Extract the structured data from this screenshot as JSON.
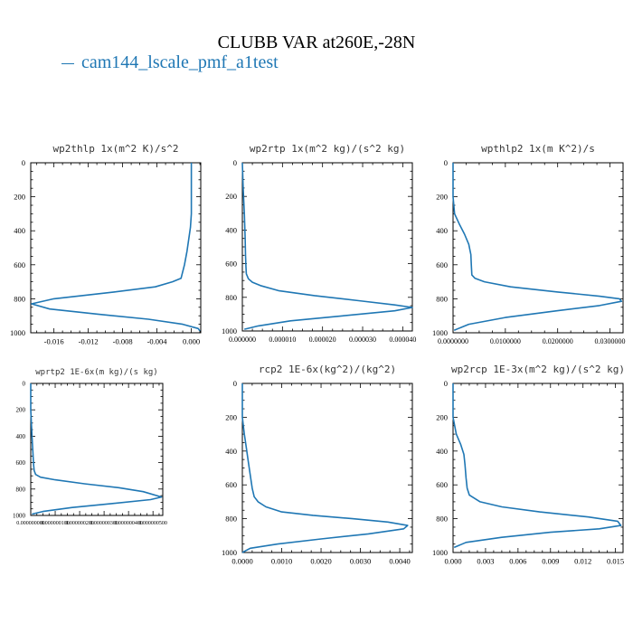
{
  "title": "CLUBB VAR at260E,-28N",
  "legend": {
    "label": "cam144_lscale_pmf_a1test",
    "color": "#1f77b4"
  },
  "chart_data": [
    {
      "type": "line",
      "title": "wp2thlp   1x(m^2 K)/s^2",
      "xlim": [
        -0.0187,
        0.0011
      ],
      "ylim": [
        1000,
        0
      ],
      "xticks": [
        -0.016,
        -0.012,
        -0.008,
        -0.004,
        0.0
      ],
      "xtick_labels": [
        "-0.016",
        "-0.012",
        "-0.008",
        "-0.004",
        "0.000"
      ],
      "yticks": [
        0,
        200,
        400,
        600,
        800,
        1000
      ],
      "series": [
        {
          "x": [
            0.0,
            0.0,
            0.0,
            0.0,
            0.0,
            -0.0001,
            -0.0003,
            -0.0005,
            -0.0008,
            -0.0012,
            -0.0022,
            -0.0042,
            -0.009,
            -0.016,
            -0.0186,
            -0.0165,
            -0.011,
            -0.005,
            -0.001,
            0.0008,
            0.001
          ],
          "y": [
            0,
            100,
            200,
            250,
            300,
            380,
            450,
            520,
            600,
            680,
            700,
            730,
            760,
            800,
            830,
            860,
            890,
            920,
            950,
            975,
            990
          ]
        }
      ]
    },
    {
      "type": "line",
      "title": "wp2rtp   1x(m^2 kg)/(s^2 kg)",
      "xlim": [
        0.0,
        4.24e-05
      ],
      "ylim": [
        1000,
        0
      ],
      "xticks": [
        0.0,
        1e-05,
        2e-05,
        3e-05,
        4e-05
      ],
      "xtick_labels": [
        "0.000000",
        "0.000010",
        "0.000020",
        "0.000030",
        "0.000040"
      ],
      "yticks": [
        0,
        200,
        400,
        600,
        800,
        1000
      ],
      "series": [
        {
          "x": [
            0.0,
            2e-07,
            5e-07,
            7e-07,
            8e-07,
            9e-07,
            1e-06,
            1.5e-06,
            2.5e-06,
            4.5e-06,
            9e-06,
            1.8e-05,
            2.9e-05,
            3.8e-05,
            4.24e-05,
            3.8e-05,
            2.5e-05,
            1.2e-05,
            4e-06,
            5e-07
          ],
          "y": [
            0,
            150,
            300,
            450,
            550,
            620,
            660,
            690,
            710,
            730,
            760,
            790,
            820,
            845,
            860,
            880,
            910,
            940,
            970,
            990
          ]
        }
      ]
    },
    {
      "type": "line",
      "title": "wpthlp2   1x(m K^2)/s",
      "xlim": [
        0.0,
        0.0325
      ],
      "ylim": [
        1000,
        0
      ],
      "xticks": [
        0.0,
        0.01,
        0.02,
        0.03
      ],
      "xtick_labels": [
        "0.0000000",
        "0.0100000",
        "0.0200000",
        "0.0300000"
      ],
      "yticks": [
        0,
        200,
        400,
        600,
        800,
        1000
      ],
      "series": [
        {
          "x": [
            0.0,
            0.0,
            0.0003,
            0.0012,
            0.0022,
            0.003,
            0.0034,
            0.0035,
            0.0036,
            0.0042,
            0.006,
            0.011,
            0.02,
            0.028,
            0.0318,
            0.0322,
            0.028,
            0.02,
            0.01,
            0.003,
            0.0002
          ],
          "y": [
            0,
            200,
            300,
            360,
            420,
            480,
            540,
            600,
            660,
            680,
            700,
            730,
            760,
            785,
            800,
            815,
            840,
            870,
            910,
            950,
            985
          ]
        }
      ]
    },
    {
      "type": "line",
      "title": "wprtp2   1E-6x(m kg)/(s kg)",
      "xlim": [
        0.0,
        5.4e-07
      ],
      "ylim": [
        1000,
        0
      ],
      "xticks": [
        0.0,
        1e-07,
        2e-07,
        3e-07,
        4e-07,
        5e-07
      ],
      "xtick_labels": [
        "0.000000000",
        "0.000000100",
        "0.000000200",
        "0.000000300",
        "0.000000400",
        "0.000000500"
      ],
      "yticks": [
        0,
        200,
        400,
        600,
        800,
        1000
      ],
      "series": [
        {
          "x": [
            0.0,
            0.0,
            5e-09,
            1e-08,
            1.2e-08,
            1.4e-08,
            2e-08,
            4e-08,
            1e-07,
            2.2e-07,
            3.6e-07,
            4.6e-07,
            5.35e-07,
            4.9e-07,
            3.3e-07,
            1.7e-07,
            5e-08,
            5e-09
          ],
          "y": [
            0,
            200,
            400,
            560,
            620,
            660,
            690,
            710,
            730,
            760,
            790,
            820,
            860,
            880,
            910,
            940,
            970,
            990
          ]
        }
      ]
    },
    {
      "type": "line",
      "title": "rcp2   1E-6x(kg^2)/(kg^2)",
      "xlim": [
        0.0,
        0.00432
      ],
      "ylim": [
        1000,
        0
      ],
      "xticks": [
        0.0,
        0.001,
        0.002,
        0.003,
        0.004
      ],
      "xtick_labels": [
        "0.0000",
        "0.0010",
        "0.0020",
        "0.0030",
        "0.0040"
      ],
      "yticks": [
        0,
        200,
        400,
        600,
        800,
        1000
      ],
      "series": [
        {
          "x": [
            0.0,
            0.0,
            5e-05,
            0.0001,
            0.00015,
            0.0002,
            0.00025,
            0.0003,
            0.0004,
            0.0006,
            0.001,
            0.0018,
            0.0028,
            0.0037,
            0.0042,
            0.0041,
            0.0032,
            0.002,
            0.0009,
            0.0002,
            0.0
          ],
          "y": [
            0,
            200,
            300,
            380,
            460,
            540,
            620,
            670,
            700,
            730,
            760,
            780,
            800,
            820,
            840,
            860,
            890,
            920,
            950,
            975,
            1000
          ]
        }
      ]
    },
    {
      "type": "line",
      "title": "wp2rcp   1E-3x(m^2 kg)/(s^2 kg)",
      "xlim": [
        0.0,
        0.0157
      ],
      "ylim": [
        1000,
        0
      ],
      "xticks": [
        0.0,
        0.003,
        0.006,
        0.009,
        0.012,
        0.015
      ],
      "xtick_labels": [
        "0.000",
        "0.003",
        "0.006",
        "0.009",
        "0.012",
        "0.015"
      ],
      "yticks": [
        0,
        200,
        400,
        600,
        800,
        1000
      ],
      "series": [
        {
          "x": [
            0.0,
            0.0,
            0.0003,
            0.0007,
            0.001,
            0.0011,
            0.0012,
            0.0013,
            0.0015,
            0.0025,
            0.0045,
            0.008,
            0.0125,
            0.0152,
            0.0155,
            0.0135,
            0.009,
            0.0045,
            0.0012,
            0.0001
          ],
          "y": [
            0,
            200,
            300,
            360,
            420,
            480,
            560,
            620,
            660,
            700,
            730,
            760,
            790,
            815,
            840,
            860,
            880,
            910,
            940,
            970
          ]
        }
      ]
    }
  ]
}
